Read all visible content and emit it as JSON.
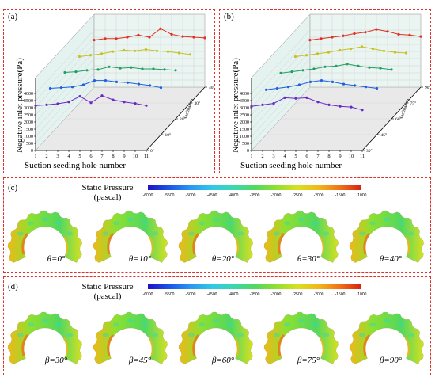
{
  "panels": {
    "a": {
      "label": "(a)"
    },
    "b": {
      "label": "(b)"
    },
    "c": {
      "label": "(c)",
      "cases": [
        "θ=0°",
        "θ=10°",
        "θ=20°",
        "θ=30°",
        "θ=40°"
      ]
    },
    "d": {
      "label": "(d)",
      "cases": [
        "β=30°",
        "β=45°",
        "β=60°",
        "β=75°",
        "β=90°"
      ]
    }
  },
  "colorbar": {
    "title_line1": "Static Pressure",
    "title_line2": "(pascal)",
    "ticks": [
      "-6000",
      "-5500",
      "-5000",
      "-4500",
      "-4000",
      "-3500",
      "-3000",
      "-2500",
      "-2000",
      "-1500",
      "-1000"
    ],
    "colors": [
      "#1f10c8",
      "#1b55e8",
      "#2a98f0",
      "#30c8e8",
      "#3ad8b0",
      "#50d860",
      "#8ee030",
      "#d8e020",
      "#f0b818",
      "#f07018",
      "#d82010"
    ]
  },
  "chart_data": [
    {
      "type": "line",
      "panel": "(a)",
      "xlabel": "Suction seeding hole number",
      "ylabel": "Negative inlet  pressure(Pa)",
      "zlabel": "Inclination",
      "x": [
        1,
        2,
        3,
        4,
        5,
        6,
        7,
        8,
        9,
        10,
        11
      ],
      "ylim": [
        0,
        4000
      ],
      "yticks": [
        "0",
        "500",
        "1000",
        "1500",
        "2000",
        "2500",
        "3000",
        "3500",
        "4000"
      ],
      "zticks": [
        "0°",
        "10°",
        "20°",
        "30°",
        "40°"
      ],
      "series": [
        {
          "name": "0°",
          "color": "#6a28c8",
          "values": [
            3150,
            3200,
            3280,
            3400,
            3800,
            3350,
            3850,
            3550,
            3400,
            3300,
            3150
          ]
        },
        {
          "name": "10°",
          "color": "#2060e0",
          "values": [
            3250,
            3300,
            3350,
            3500,
            3800,
            3800,
            3700,
            3650,
            3550,
            3450,
            3300
          ]
        },
        {
          "name": "20°",
          "color": "#20a060",
          "values": [
            3250,
            3300,
            3400,
            3450,
            3650,
            3550,
            3600,
            3500,
            3500,
            3450,
            3400
          ]
        },
        {
          "name": "30°",
          "color": "#c8c020",
          "values": [
            3250,
            3350,
            3450,
            3600,
            3700,
            3650,
            3750,
            3650,
            3600,
            3500,
            3400
          ]
        },
        {
          "name": "40°",
          "color": "#e03020",
          "values": [
            3300,
            3400,
            3400,
            3500,
            3650,
            3500,
            4100,
            3700,
            3550,
            3500,
            3450
          ]
        }
      ]
    },
    {
      "type": "line",
      "panel": "(b)",
      "xlabel": "Suction seeding hole number",
      "ylabel": "Negative inlet  pressure(Pa)",
      "zlabel": "Inclination",
      "x": [
        1,
        2,
        3,
        4,
        5,
        6,
        7,
        8,
        9,
        10,
        11
      ],
      "ylim": [
        0,
        4000
      ],
      "yticks": [
        "0",
        "500",
        "1000",
        "1500",
        "2000",
        "2500",
        "3000",
        "3500",
        "4000"
      ],
      "zticks": [
        "30°",
        "45°",
        "60°",
        "75°",
        "90°"
      ],
      "series": [
        {
          "name": "30°",
          "color": "#6a28c8",
          "values": [
            3100,
            3200,
            3300,
            3700,
            3650,
            3700,
            3400,
            3200,
            3100,
            3050,
            2850
          ]
        },
        {
          "name": "45°",
          "color": "#2060e0",
          "values": [
            3150,
            3250,
            3350,
            3500,
            3700,
            3800,
            3700,
            3550,
            3450,
            3350,
            3250
          ]
        },
        {
          "name": "60°",
          "color": "#20a060",
          "values": [
            3200,
            3300,
            3400,
            3500,
            3650,
            3700,
            3850,
            3700,
            3600,
            3550,
            3450
          ]
        },
        {
          "name": "75°",
          "color": "#c8c020",
          "values": [
            3250,
            3350,
            3450,
            3550,
            3700,
            3800,
            3950,
            3800,
            3650,
            3550,
            3500
          ]
        },
        {
          "name": "90°",
          "color": "#e03020",
          "values": [
            3300,
            3400,
            3500,
            3600,
            3750,
            3850,
            4050,
            3900,
            3700,
            3650,
            3550
          ]
        }
      ]
    }
  ]
}
